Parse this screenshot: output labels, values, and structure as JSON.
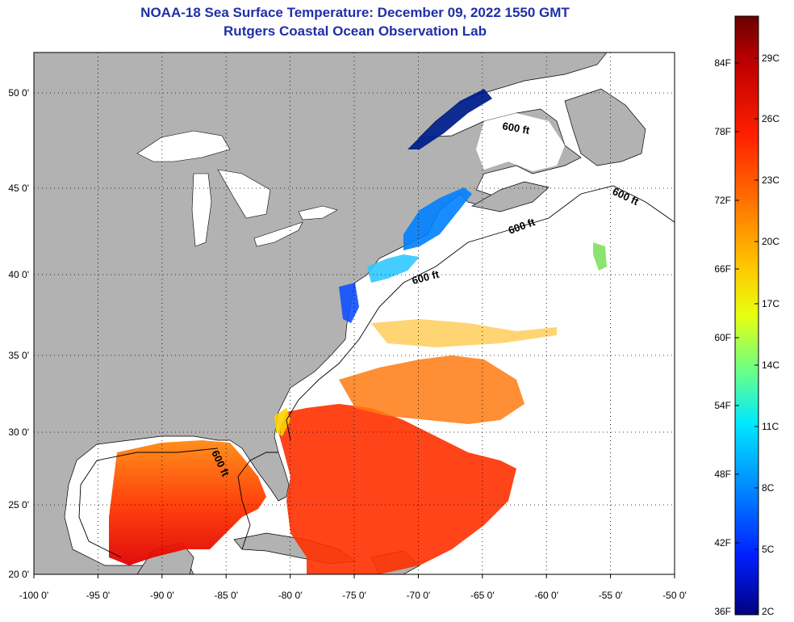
{
  "title": "NOAA-18 Sea Surface Temperature:  December 09, 2022 1550 GMT",
  "subtitle": "Rutgers Coastal Ocean Observation Lab",
  "contour_label": "600 ft",
  "lon_ticks": [
    "-100 0'",
    "-95 0'",
    "-90 0'",
    "-85 0'",
    "-80 0'",
    "-75 0'",
    "-70 0'",
    "-65 0'",
    "-60 0'",
    "-55 0'",
    "-50 0'"
  ],
  "lat_ticks": [
    "50 0'",
    "45 0'",
    "40 0'",
    "35 0'",
    "30 0'",
    "25 0'",
    "20 0'"
  ],
  "colorbar": {
    "f_labels": [
      "84F",
      "78F",
      "72F",
      "66F",
      "60F",
      "54F",
      "48F",
      "42F",
      "36F"
    ],
    "c_labels": [
      "29C",
      "26C",
      "23C",
      "20C",
      "17C",
      "14C",
      "11C",
      "8C",
      "5C",
      "2C"
    ],
    "colors": [
      "#7a0000",
      "#c40000",
      "#ff1a00",
      "#ff7a00",
      "#ffd200",
      "#c8ff30",
      "#40ffb0",
      "#00e0ff",
      "#0090ff",
      "#0030ff",
      "#00007a"
    ]
  },
  "colors": {
    "land": "#b2b2b2",
    "ocean_missing": "#ffffff",
    "title": "#1f2fa8"
  }
}
